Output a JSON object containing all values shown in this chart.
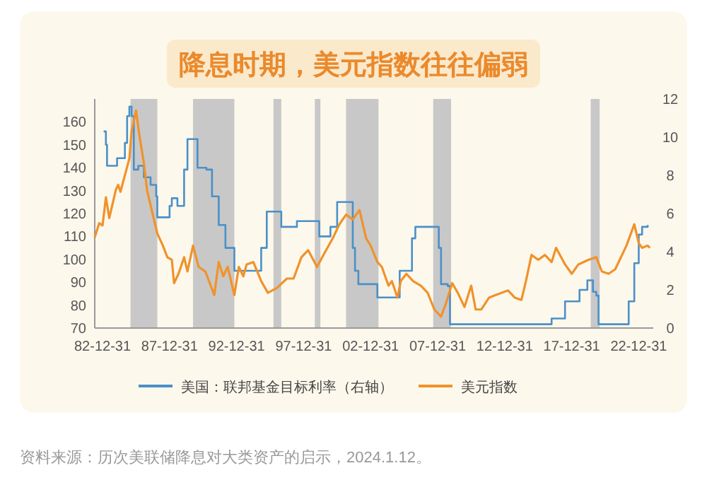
{
  "chart_data": {
    "type": "line",
    "title": "降息时期，美元指数往往偏弱",
    "xlim": [
      "1982-06",
      "2024-02"
    ],
    "xticks": [
      {
        "value": "1982-12-31",
        "label": "82-12-31"
      },
      {
        "value": "1987-12-31",
        "label": "87-12-31"
      },
      {
        "value": "1992-12-31",
        "label": "92-12-31"
      },
      {
        "value": "1997-12-31",
        "label": "97-12-31"
      },
      {
        "value": "2002-12-31",
        "label": "02-12-31"
      },
      {
        "value": "2007-12-31",
        "label": "07-12-31"
      },
      {
        "value": "2012-12-31",
        "label": "12-12-31"
      },
      {
        "value": "2017-12-31",
        "label": "17-12-31"
      },
      {
        "value": "2022-12-31",
        "label": "22-12-31"
      }
    ],
    "ylim": [
      70,
      170
    ],
    "yticks": [
      70,
      80,
      90,
      100,
      110,
      120,
      130,
      140,
      150,
      160
    ],
    "y2lim": [
      0,
      12
    ],
    "y2ticks": [
      0,
      2,
      4,
      6,
      8,
      10,
      12
    ],
    "bands": [
      {
        "axis": "x",
        "from": "1985-02",
        "to": "1987-02",
        "color": "#c8c8c8"
      },
      {
        "axis": "x",
        "from": "1989-10",
        "to": "1992-11",
        "color": "#c8c8c8"
      },
      {
        "axis": "x",
        "from": "1995-10",
        "to": "1996-05",
        "color": "#c8c8c8"
      },
      {
        "axis": "x",
        "from": "1998-11",
        "to": "1999-04",
        "color": "#c8c8c8"
      },
      {
        "axis": "x",
        "from": "2001-03",
        "to": "2003-08",
        "color": "#c8c8c8"
      },
      {
        "axis": "x",
        "from": "2007-09",
        "to": "2009-01",
        "color": "#c8c8c8"
      },
      {
        "axis": "x",
        "from": "2019-06",
        "to": "2020-02",
        "color": "#c8c8c8"
      }
    ],
    "series": [
      {
        "name": "美国：联邦基金目标利率（右轴）",
        "color": "#4a90c8",
        "axis": "y2",
        "type": "step",
        "x": [
          "1983-02",
          "1983-04",
          "1983-05",
          "1983-10",
          "1984-02",
          "1984-09",
          "1984-11",
          "1985-01",
          "1985-03",
          "1985-05",
          "1985-09",
          "1986-02",
          "1986-08",
          "1987-01",
          "1987-02",
          "1987-08",
          "1988-01",
          "1988-03",
          "1988-08",
          "1989-02",
          "1989-05",
          "1989-10",
          "1990-02",
          "1990-10",
          "1991-03",
          "1991-09",
          "1992-03",
          "1992-11",
          "1994-04",
          "1994-11",
          "1995-04",
          "1995-11",
          "1996-05",
          "1997-04",
          "1997-07",
          "1998-11",
          "1999-03",
          "1999-08",
          "2000-01",
          "2000-07",
          "2001-03",
          "2001-09",
          "2001-11",
          "2002-02",
          "2003-02",
          "2003-07",
          "2004-07",
          "2005-03",
          "2006-02",
          "2006-05",
          "2007-10",
          "2008-02",
          "2008-04",
          "2008-10",
          "2008-12",
          "2015-10",
          "2016-07",
          "2017-07",
          "2018-08",
          "2019-03",
          "2019-05",
          "2019-08",
          "2019-11",
          "2020-01",
          "2022-01",
          "2022-04",
          "2022-09",
          "2023-01",
          "2023-04",
          "2023-09"
        ],
        "values": [
          10.3,
          9.6,
          8.5,
          8.5,
          8.9,
          9.7,
          11.1,
          11.6,
          11.1,
          8.3,
          8.5,
          7.9,
          7.5,
          6.9,
          5.8,
          5.8,
          6.4,
          6.8,
          6.4,
          8.3,
          9.9,
          9.9,
          8.4,
          8.3,
          6.9,
          5.4,
          4.2,
          3.0,
          3.0,
          4.2,
          6.1,
          6.1,
          5.3,
          5.3,
          5.6,
          5.6,
          4.8,
          4.8,
          5.3,
          6.6,
          6.6,
          4.2,
          3.0,
          2.3,
          2.3,
          1.6,
          1.6,
          3.0,
          4.7,
          5.3,
          5.3,
          4.2,
          2.3,
          2.2,
          0.2,
          0.2,
          0.5,
          1.4,
          2.0,
          2.5,
          2.5,
          1.9,
          1.7,
          0.2,
          0.2,
          1.4,
          3.4,
          4.9,
          5.3,
          5.4
        ]
      },
      {
        "name": "美元指数",
        "color": "#f0922b",
        "type": "line",
        "x": [
          "1982-06",
          "1982-10",
          "1983-01",
          "1983-04",
          "1983-07",
          "1984-01",
          "1984-03",
          "1984-05",
          "1984-09",
          "1985-01",
          "1985-03",
          "1985-07",
          "1985-10",
          "1986-02",
          "1986-05",
          "1986-10",
          "1987-02",
          "1987-07",
          "1987-11",
          "1988-03",
          "1988-05",
          "1988-09",
          "1989-02",
          "1989-05",
          "1989-10",
          "1990-03",
          "1990-09",
          "1991-01",
          "1991-05",
          "1991-09",
          "1992-01",
          "1992-05",
          "1992-09",
          "1992-11",
          "1993-03",
          "1993-07",
          "1993-10",
          "1994-04",
          "1994-11",
          "1995-05",
          "1996-01",
          "1996-10",
          "1997-04",
          "1997-11",
          "1998-05",
          "1999-01",
          "1999-08",
          "2000-03",
          "2000-09",
          "2001-03",
          "2001-09",
          "2002-03",
          "2002-09",
          "2003-01",
          "2003-07",
          "2003-11",
          "2004-05",
          "2004-08",
          "2005-01",
          "2005-04",
          "2005-09",
          "2006-03",
          "2006-10",
          "2007-04",
          "2007-10",
          "2008-04",
          "2008-08",
          "2009-02",
          "2009-07",
          "2010-01",
          "2010-07",
          "2010-11",
          "2011-04",
          "2011-11",
          "2012-05",
          "2013-04",
          "2013-10",
          "2014-04",
          "2014-08",
          "2015-01",
          "2015-07",
          "2016-01",
          "2016-07",
          "2016-11",
          "2017-07",
          "2018-01",
          "2018-07",
          "2019-04",
          "2019-11",
          "2020-04",
          "2020-10",
          "2021-04",
          "2022-02",
          "2022-09",
          "2023-01",
          "2023-04",
          "2023-09",
          "2023-11"
        ],
        "values": [
          109.6,
          115.8,
          114.8,
          127.1,
          118,
          130.5,
          132.5,
          129.5,
          136.7,
          144,
          156,
          165,
          154,
          142,
          129.8,
          119.5,
          111.3,
          106,
          100.9,
          99.8,
          89.6,
          93.7,
          100.9,
          94.7,
          106,
          96.7,
          94.7,
          89.6,
          84.4,
          98.8,
          92.6,
          96.7,
          88.5,
          84.4,
          96.7,
          92.6,
          97.8,
          98.8,
          90.5,
          85.4,
          87.5,
          91.6,
          91.6,
          100.9,
          104,
          96.7,
          103,
          109.1,
          115.3,
          119.5,
          117.4,
          121.5,
          109.1,
          106,
          98.8,
          96.7,
          88.5,
          90.5,
          83.3,
          90.5,
          93.7,
          90.5,
          88.5,
          85.4,
          78.1,
          75,
          80.2,
          89.6,
          85.4,
          79.2,
          88.5,
          78.1,
          78.1,
          83.3,
          84.4,
          86.4,
          83.3,
          82.3,
          90.5,
          101.9,
          99.8,
          101.9,
          98.8,
          105,
          97.8,
          93.7,
          97.8,
          99.8,
          100.9,
          94.7,
          93.7,
          95.7,
          106,
          115.3,
          107.1,
          105,
          106,
          105
        ]
      }
    ],
    "legend": "bottom",
    "annotations": [
      "资料来源：历次美联储降息对大类资产的启示，2024.1.12。"
    ]
  }
}
